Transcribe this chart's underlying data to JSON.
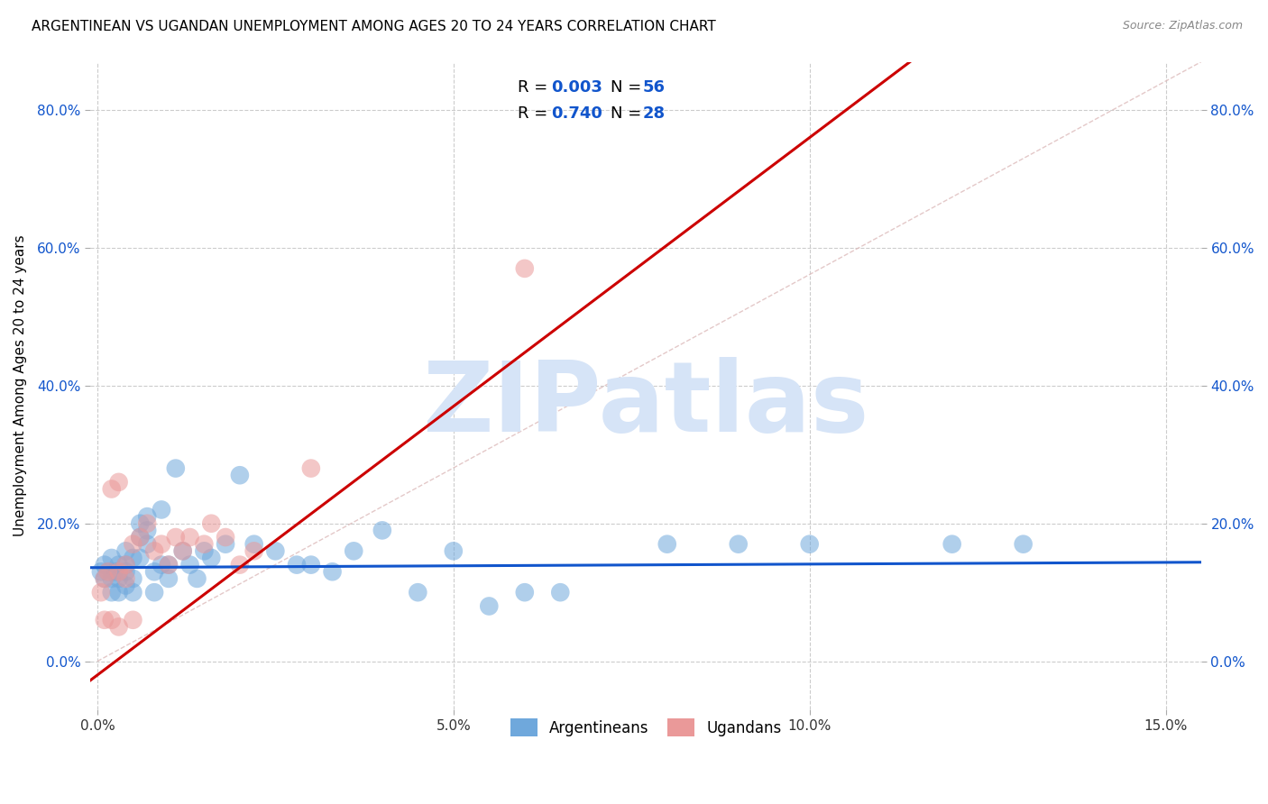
{
  "title": "ARGENTINEAN VS UGANDAN UNEMPLOYMENT AMONG AGES 20 TO 24 YEARS CORRELATION CHART",
  "source": "Source: ZipAtlas.com",
  "ylabel": "Unemployment Among Ages 20 to 24 years",
  "xlim": [
    -0.001,
    0.155
  ],
  "ylim": [
    -0.07,
    0.87
  ],
  "xticks": [
    0.0,
    0.05,
    0.1,
    0.15
  ],
  "xticklabels": [
    "0.0%",
    "5.0%",
    "10.0%",
    "15.0%"
  ],
  "yticks": [
    0.0,
    0.2,
    0.4,
    0.6,
    0.8
  ],
  "yticklabels": [
    "0.0%",
    "20.0%",
    "40.0%",
    "60.0%",
    "80.0%"
  ],
  "blue_color": "#6fa8dc",
  "pink_color": "#ea9999",
  "blue_line_color": "#1155cc",
  "pink_line_color": "#cc0000",
  "diag_line_color": "#ddbbbb",
  "watermark_color": "#d6e4f7",
  "watermark_text": "ZIPatlas",
  "legend_R1": "0.003",
  "legend_N1": "56",
  "legend_R2": "0.740",
  "legend_N2": "28",
  "argentineans_x": [
    0.0005,
    0.001,
    0.001,
    0.0015,
    0.002,
    0.002,
    0.002,
    0.0025,
    0.003,
    0.003,
    0.003,
    0.003,
    0.004,
    0.004,
    0.004,
    0.004,
    0.005,
    0.005,
    0.005,
    0.006,
    0.006,
    0.006,
    0.007,
    0.007,
    0.007,
    0.008,
    0.008,
    0.009,
    0.009,
    0.01,
    0.01,
    0.011,
    0.012,
    0.013,
    0.014,
    0.015,
    0.016,
    0.018,
    0.02,
    0.022,
    0.025,
    0.028,
    0.03,
    0.033,
    0.036,
    0.04,
    0.045,
    0.05,
    0.055,
    0.06,
    0.065,
    0.08,
    0.09,
    0.1,
    0.12,
    0.13
  ],
  "argentineans_y": [
    0.13,
    0.14,
    0.12,
    0.13,
    0.1,
    0.12,
    0.15,
    0.13,
    0.14,
    0.13,
    0.12,
    0.1,
    0.14,
    0.16,
    0.13,
    0.11,
    0.15,
    0.12,
    0.1,
    0.15,
    0.2,
    0.18,
    0.21,
    0.17,
    0.19,
    0.13,
    0.1,
    0.14,
    0.22,
    0.14,
    0.12,
    0.28,
    0.16,
    0.14,
    0.12,
    0.16,
    0.15,
    0.17,
    0.27,
    0.17,
    0.16,
    0.14,
    0.14,
    0.13,
    0.16,
    0.19,
    0.1,
    0.16,
    0.08,
    0.1,
    0.1,
    0.17,
    0.17,
    0.17,
    0.17,
    0.17
  ],
  "ugandans_x": [
    0.0005,
    0.001,
    0.001,
    0.0015,
    0.002,
    0.002,
    0.003,
    0.003,
    0.003,
    0.004,
    0.004,
    0.005,
    0.005,
    0.006,
    0.007,
    0.008,
    0.009,
    0.01,
    0.011,
    0.012,
    0.013,
    0.015,
    0.016,
    0.018,
    0.02,
    0.022,
    0.03,
    0.06
  ],
  "ugandans_y": [
    0.1,
    0.12,
    0.06,
    0.13,
    0.25,
    0.06,
    0.26,
    0.13,
    0.05,
    0.14,
    0.12,
    0.17,
    0.06,
    0.18,
    0.2,
    0.16,
    0.17,
    0.14,
    0.18,
    0.16,
    0.18,
    0.17,
    0.2,
    0.18,
    0.14,
    0.16,
    0.28,
    0.57
  ],
  "blue_reg_slope": 0.05,
  "blue_reg_intercept": 0.136,
  "pink_reg_slope": 7.8,
  "pink_reg_intercept": -0.02,
  "title_fontsize": 11,
  "axis_label_fontsize": 11,
  "tick_fontsize": 11,
  "legend_fontsize": 13
}
